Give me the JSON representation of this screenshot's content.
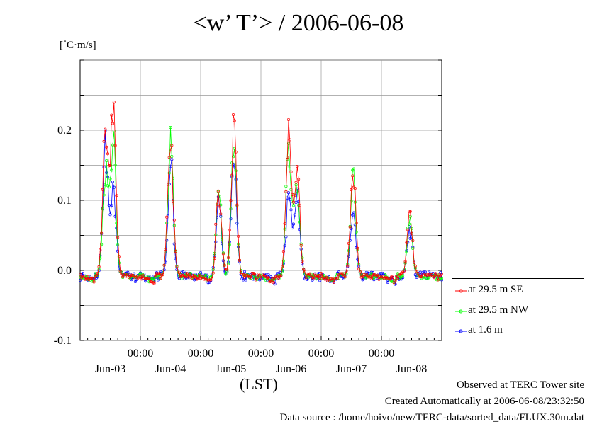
{
  "title": "<w’ T’> / 2006-06-08",
  "y_unit_label": "[˚C·m/s]",
  "x_axis_label": "(LST)",
  "footer": {
    "line1": "Observed at TERC Tower site",
    "line2": "Created Automatically at 2006-06-08/23:32:50",
    "line3": "Data source : /home/hoivo/new/TERC-data/sorted_data/FLUX.30m.dat"
  },
  "legend": [
    {
      "label": "at 29.5 m SE",
      "color": "#ff0000"
    },
    {
      "label": "at 29.5 m NW",
      "color": "#00ff00"
    },
    {
      "label": "at 1.6 m",
      "color": "#0000ff"
    }
  ],
  "chart_data": {
    "type": "line",
    "ylim": [
      -0.1,
      0.3
    ],
    "xlim": [
      0,
      6
    ],
    "y_ticks": [
      "-0.1",
      "0.0",
      "0.1",
      "0.2"
    ],
    "x_time_ticks": [
      "00:00",
      "00:00",
      "00:00",
      "00:00",
      "00:00"
    ],
    "x_date_ticks": [
      "Jun-03",
      "Jun-04",
      "Jun-05",
      "Jun-06",
      "Jun-07",
      "Jun-08"
    ],
    "grid": true,
    "legend_position": "right-bottom",
    "peaks": [
      {
        "t": 0.42,
        "SE": 0.2,
        "NW": 0.15,
        "Z16": 0.18
      },
      {
        "t": 0.55,
        "SE": 0.235,
        "NW": 0.19,
        "Z16": 0.12
      },
      {
        "t": 1.5,
        "SE": 0.197,
        "NW": 0.19,
        "Z16": 0.16
      },
      {
        "t": 2.3,
        "SE": 0.125,
        "NW": 0.12,
        "Z16": 0.1
      },
      {
        "t": 2.55,
        "SE": 0.207,
        "NW": 0.18,
        "Z16": 0.16
      },
      {
        "t": 3.46,
        "SE": 0.197,
        "NW": 0.18,
        "Z16": 0.11
      },
      {
        "t": 3.6,
        "SE": 0.155,
        "NW": 0.14,
        "Z16": 0.11
      },
      {
        "t": 4.53,
        "SE": 0.148,
        "NW": 0.14,
        "Z16": 0.09
      },
      {
        "t": 5.47,
        "SE": 0.09,
        "NW": 0.08,
        "Z16": 0.065
      }
    ]
  }
}
